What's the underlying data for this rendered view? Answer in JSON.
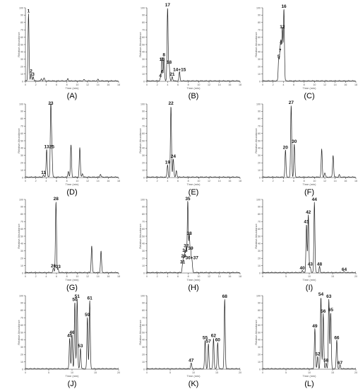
{
  "chart_data": [
    {
      "type": "line",
      "panel_label": "(A)",
      "ylabel": "Relative Abundance",
      "xlabel": "Time (min)",
      "xlim": [
        0,
        18
      ],
      "ylim": [
        0,
        100
      ],
      "xticks": [
        0,
        2,
        4,
        6,
        8,
        10,
        12,
        14,
        16,
        18
      ],
      "yticks": [
        0,
        10,
        20,
        30,
        40,
        50,
        60,
        70,
        80,
        90,
        100
      ],
      "header_text": "",
      "peaks": [
        {
          "label": "1",
          "x": 0.6,
          "y": 92
        },
        {
          "label": "2",
          "x": 1.1,
          "y": 10
        },
        {
          "label": "3",
          "x": 1.5,
          "y": 6
        },
        {
          "label": "",
          "x": 3.1,
          "y": 3
        },
        {
          "label": "",
          "x": 3.6,
          "y": 4
        },
        {
          "label": "",
          "x": 8.2,
          "y": 3
        },
        {
          "label": "",
          "x": 11.3,
          "y": 2
        },
        {
          "label": "",
          "x": 14.0,
          "y": 2
        }
      ]
    },
    {
      "type": "line",
      "panel_label": "(B)",
      "ylabel": "Relative Abundance",
      "xlabel": "Time (min)",
      "xlim": [
        0,
        18
      ],
      "ylim": [
        0,
        100
      ],
      "xticks": [
        0,
        2,
        4,
        6,
        8,
        10,
        12,
        14,
        16,
        18
      ],
      "yticks": [
        0,
        10,
        20,
        30,
        40,
        50,
        60,
        70,
        80,
        90,
        100
      ],
      "peaks": [
        {
          "label": "4",
          "x": 2.6,
          "y": 4
        },
        {
          "label": "6",
          "x": 3.0,
          "y": 9
        },
        {
          "label": "10",
          "x": 2.9,
          "y": 26
        },
        {
          "label": "8",
          "x": 3.3,
          "y": 32
        },
        {
          "label": "17",
          "x": 4.0,
          "y": 100
        },
        {
          "label": "18",
          "x": 4.3,
          "y": 22
        },
        {
          "label": "21",
          "x": 4.9,
          "y": 6
        },
        {
          "label": "14+15",
          "x": 6.3,
          "y": 12
        }
      ]
    },
    {
      "type": "line",
      "panel_label": "(C)",
      "ylabel": "Relative Abundance",
      "xlabel": "Time (min)",
      "xlim": [
        0,
        18
      ],
      "ylim": [
        0,
        100
      ],
      "xticks": [
        0,
        2,
        4,
        6,
        8,
        10,
        12,
        14,
        16,
        18
      ],
      "yticks": [
        0,
        10,
        20,
        30,
        40,
        50,
        60,
        70,
        80,
        90,
        100
      ],
      "peaks": [
        {
          "label": "5",
          "x": 3.1,
          "y": 30
        },
        {
          "label": "7",
          "x": 3.35,
          "y": 38
        },
        {
          "label": "9",
          "x": 3.55,
          "y": 48
        },
        {
          "label": "12",
          "x": 3.8,
          "y": 70
        },
        {
          "label": "16",
          "x": 4.1,
          "y": 98
        }
      ]
    },
    {
      "type": "line",
      "panel_label": "(D)",
      "ylabel": "Relative Abundance",
      "xlabel": "Time (min)",
      "xlim": [
        0,
        18
      ],
      "ylim": [
        0,
        100
      ],
      "xticks": [
        0,
        2,
        4,
        6,
        8,
        10,
        12,
        14,
        16,
        18
      ],
      "yticks": [
        0,
        10,
        20,
        30,
        40,
        50,
        60,
        70,
        80,
        90,
        100
      ],
      "peaks": [
        {
          "label": "11",
          "x": 3.5,
          "y": 3
        },
        {
          "label": "13",
          "x": 4.1,
          "y": 38
        },
        {
          "label": "23",
          "x": 4.9,
          "y": 97
        },
        {
          "label": "25",
          "x": 5.1,
          "y": 38
        },
        {
          "label": "",
          "x": 8.3,
          "y": 8
        },
        {
          "label": "",
          "x": 8.8,
          "y": 44
        },
        {
          "label": "",
          "x": 10.5,
          "y": 40
        },
        {
          "label": "",
          "x": 11.0,
          "y": 5
        },
        {
          "label": "",
          "x": 14.5,
          "y": 4
        }
      ]
    },
    {
      "type": "line",
      "panel_label": "(E)",
      "ylabel": "Relative Abundance",
      "xlabel": "Time (min)",
      "xlim": [
        0,
        18
      ],
      "ylim": [
        0,
        100
      ],
      "xticks": [
        0,
        2,
        4,
        6,
        8,
        10,
        12,
        14,
        16,
        18
      ],
      "yticks": [
        0,
        10,
        20,
        30,
        40,
        50,
        60,
        70,
        80,
        90,
        100
      ],
      "peaks": [
        {
          "label": "19",
          "x": 4.0,
          "y": 17
        },
        {
          "label": "22",
          "x": 4.65,
          "y": 97
        },
        {
          "label": "24",
          "x": 5.1,
          "y": 25
        },
        {
          "label": "",
          "x": 5.7,
          "y": 9
        }
      ]
    },
    {
      "type": "line",
      "panel_label": "(F)",
      "ylabel": "Relative Abundance",
      "xlabel": "Time (min)",
      "xlim": [
        0,
        18
      ],
      "ylim": [
        0,
        100
      ],
      "xticks": [
        0,
        2,
        4,
        6,
        8,
        10,
        12,
        14,
        16,
        18
      ],
      "yticks": [
        0,
        10,
        20,
        30,
        40,
        50,
        60,
        70,
        80,
        90,
        100
      ],
      "peaks": [
        {
          "label": "20",
          "x": 4.4,
          "y": 37
        },
        {
          "label": "27",
          "x": 5.5,
          "y": 98
        },
        {
          "label": "30",
          "x": 6.1,
          "y": 45
        },
        {
          "label": "",
          "x": 11.4,
          "y": 38
        },
        {
          "label": "",
          "x": 12.0,
          "y": 6
        },
        {
          "label": "",
          "x": 13.6,
          "y": 30
        },
        {
          "label": "",
          "x": 14.8,
          "y": 3
        }
      ]
    },
    {
      "type": "line",
      "panel_label": "(G)",
      "ylabel": "Relative Abundance",
      "xlabel": "Time (min)",
      "xlim": [
        0,
        18
      ],
      "ylim": [
        0,
        100
      ],
      "xticks": [
        0,
        2,
        4,
        6,
        8,
        10,
        12,
        14,
        16,
        18
      ],
      "yticks": [
        0,
        10,
        20,
        30,
        40,
        50,
        60,
        70,
        80,
        90,
        100
      ],
      "peaks": [
        {
          "label": "26",
          "x": 5.4,
          "y": 6
        },
        {
          "label": "28",
          "x": 5.9,
          "y": 97
        },
        {
          "label": "33",
          "x": 6.3,
          "y": 5
        },
        {
          "label": "",
          "x": 12.8,
          "y": 37
        },
        {
          "label": "",
          "x": 14.6,
          "y": 30
        }
      ]
    },
    {
      "type": "line",
      "panel_label": "(H)",
      "ylabel": "Relative Abundance",
      "xlabel": "Time (min)",
      "xlim": [
        0,
        18
      ],
      "ylim": [
        0,
        100
      ],
      "xticks": [
        0,
        2,
        4,
        6,
        8,
        10,
        12,
        14,
        16,
        18
      ],
      "yticks": [
        0,
        10,
        20,
        30,
        40,
        50,
        60,
        70,
        80,
        90,
        100
      ],
      "peaks": [
        {
          "label": "31",
          "x": 6.9,
          "y": 11
        },
        {
          "label": "29",
          "x": 7.1,
          "y": 19
        },
        {
          "label": "34",
          "x": 7.35,
          "y": 27
        },
        {
          "label": "32",
          "x": 7.6,
          "y": 33
        },
        {
          "label": "35",
          "x": 7.9,
          "y": 97
        },
        {
          "label": "38",
          "x": 8.2,
          "y": 50
        },
        {
          "label": "39",
          "x": 8.45,
          "y": 30
        },
        {
          "label": "36+37",
          "x": 8.7,
          "y": 17
        }
      ]
    },
    {
      "type": "line",
      "panel_label": "(I)",
      "ylabel": "Relative Abundance",
      "xlabel": "Time (min)",
      "xlim": [
        0,
        20
      ],
      "ylim": [
        0,
        100
      ],
      "xticks": [
        0,
        5,
        10,
        15,
        20
      ],
      "yticks": [
        0,
        10,
        20,
        30,
        40,
        50,
        60,
        70,
        80,
        90,
        100
      ],
      "peaks": [
        {
          "label": "40",
          "x": 8.5,
          "y": 3
        },
        {
          "label": "41",
          "x": 9.4,
          "y": 66
        },
        {
          "label": "42",
          "x": 9.8,
          "y": 79
        },
        {
          "label": "43",
          "x": 10.2,
          "y": 8
        },
        {
          "label": "44",
          "x": 11.1,
          "y": 96
        },
        {
          "label": "48",
          "x": 12.2,
          "y": 8
        },
        {
          "label": "64",
          "x": 17.5,
          "y": 1
        }
      ]
    },
    {
      "type": "line",
      "panel_label": "(J)",
      "ylabel": "Relative Abundance",
      "xlabel": "Time (min)",
      "xlim": [
        0,
        20
      ],
      "ylim": [
        0,
        100
      ],
      "xticks": [
        0,
        5,
        10,
        15,
        20
      ],
      "yticks": [
        0,
        10,
        20,
        30,
        40,
        50,
        60,
        70,
        80,
        90,
        100
      ],
      "peaks": [
        {
          "label": "45",
          "x": 9.5,
          "y": 42
        },
        {
          "label": "46",
          "x": 10.0,
          "y": 46
        },
        {
          "label": "50",
          "x": 10.6,
          "y": 91
        },
        {
          "label": "51",
          "x": 11.1,
          "y": 95
        },
        {
          "label": "53",
          "x": 11.8,
          "y": 28
        },
        {
          "label": "59",
          "x": 13.3,
          "y": 70
        },
        {
          "label": "61",
          "x": 13.8,
          "y": 93
        }
      ]
    },
    {
      "type": "line",
      "panel_label": "(K)",
      "ylabel": "Relative Abundance",
      "xlabel": "Time (min)",
      "xlim": [
        0,
        20
      ],
      "ylim": [
        0,
        100
      ],
      "xticks": [
        0,
        5,
        10,
        15,
        20
      ],
      "yticks": [
        0,
        10,
        20,
        30,
        40,
        50,
        60,
        70,
        80,
        90,
        100
      ],
      "header_text": "",
      "peaks": [
        {
          "label": "47",
          "x": 9.5,
          "y": 8
        },
        {
          "label": "55",
          "x": 12.5,
          "y": 39
        },
        {
          "label": "57",
          "x": 13.2,
          "y": 34
        },
        {
          "label": "62",
          "x": 14.3,
          "y": 42
        },
        {
          "label": "60",
          "x": 15.2,
          "y": 36
        },
        {
          "label": "68",
          "x": 16.7,
          "y": 95
        }
      ]
    },
    {
      "type": "line",
      "panel_label": "(L)",
      "ylabel": "Relative Abundance",
      "xlabel": "Time (min)",
      "xlim": [
        0,
        20
      ],
      "ylim": [
        0,
        100
      ],
      "xticks": [
        0,
        5,
        10,
        15,
        20
      ],
      "yticks": [
        0,
        10,
        20,
        30,
        40,
        50,
        60,
        70,
        80,
        90,
        100
      ],
      "peaks": [
        {
          "label": "49",
          "x": 11.2,
          "y": 55
        },
        {
          "label": "52",
          "x": 11.8,
          "y": 17
        },
        {
          "label": "54",
          "x": 12.5,
          "y": 98
        },
        {
          "label": "56",
          "x": 13.0,
          "y": 75
        },
        {
          "label": "58",
          "x": 13.6,
          "y": 8
        },
        {
          "label": "63",
          "x": 14.2,
          "y": 95
        },
        {
          "label": "65",
          "x": 14.6,
          "y": 77
        },
        {
          "label": "66",
          "x": 15.9,
          "y": 39
        },
        {
          "label": "67",
          "x": 16.6,
          "y": 5
        }
      ]
    }
  ]
}
